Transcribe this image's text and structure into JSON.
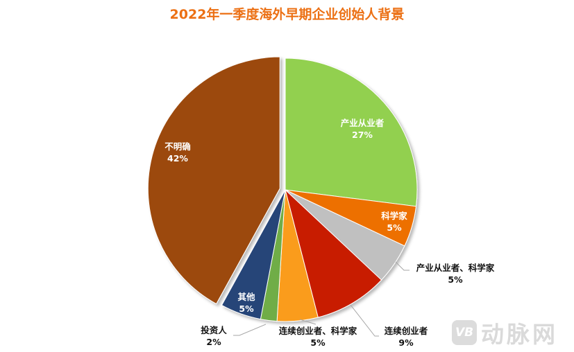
{
  "title": "2022年一季度海外早期企业创始人背景",
  "watermark": {
    "logo": "VB",
    "text": "动脉网"
  },
  "slices": [
    {
      "name": "产业从业者",
      "value": "27%",
      "color": "#92d050"
    },
    {
      "name": "科学家",
      "value": "5%",
      "color": "#ed7004"
    },
    {
      "name": "产业从业者、科学家",
      "value": "5%",
      "color": "#c0c0c0"
    },
    {
      "name": "连续创业者",
      "value": "9%",
      "color": "#c81a00"
    },
    {
      "name": "连续创业者、科学家",
      "value": "5%",
      "color": "#fa9c1b"
    },
    {
      "name": "投资人",
      "value": "2%",
      "color": "#70ad47"
    },
    {
      "name": "其他",
      "value": "5%",
      "color": "#264478"
    },
    {
      "name": "不明确",
      "value": "42%",
      "color": "#9c4a0e"
    }
  ],
  "chart_data": {
    "type": "pie",
    "title": "2022年一季度海外早期企业创始人背景",
    "categories": [
      "产业从业者",
      "科学家",
      "产业从业者、科学家",
      "连续创业者",
      "连续创业者、科学家",
      "投资人",
      "其他",
      "不明确"
    ],
    "values": [
      27,
      5,
      5,
      9,
      5,
      2,
      5,
      42
    ],
    "unit": "%",
    "colors": [
      "#92d050",
      "#ed7004",
      "#c0c0c0",
      "#c81a00",
      "#fa9c1b",
      "#70ad47",
      "#264478",
      "#9c4a0e"
    ],
    "exploded": [
      "不明确"
    ],
    "start_angle": "12 o'clock, clockwise",
    "legend": "none (data labels on slices)"
  }
}
